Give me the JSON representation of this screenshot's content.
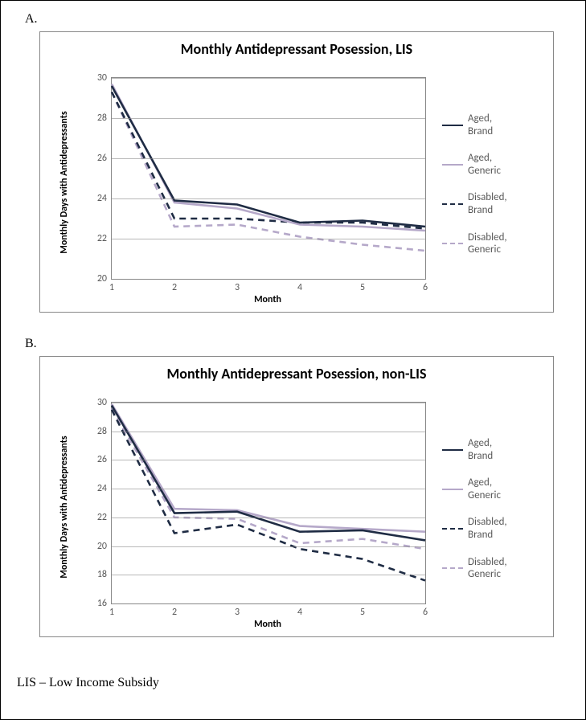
{
  "border_color": "#000000",
  "footnote": "LIS – Low Income Subsidy",
  "panelA": {
    "label": "A.",
    "title": "Monthly Antidepressant Posession, LIS",
    "title_fontsize": 18,
    "xlabel": "Month",
    "ylabel": "Monthly Days with Antidepressants",
    "label_fontsize": 12,
    "tick_color": "#595959",
    "background_color": "#ffffff",
    "grid_color": "#888888",
    "xlim": [
      1,
      6
    ],
    "ylim": [
      20,
      30
    ],
    "ytick_step": 2,
    "xticks": [
      1,
      2,
      3,
      4,
      5,
      6
    ],
    "yticks": [
      20,
      22,
      24,
      26,
      28,
      30
    ],
    "series": {
      "aged_brand": {
        "label": "Aged, Brand",
        "color": "#1f2c44",
        "dash": "solid",
        "width": 2.6,
        "x": [
          1,
          2,
          3,
          4,
          5,
          6
        ],
        "y": [
          29.6,
          23.9,
          23.7,
          22.8,
          22.9,
          22.6
        ]
      },
      "aged_generic": {
        "label": "Aged, Generic",
        "color": "#b5a8c9",
        "dash": "solid",
        "width": 2.6,
        "x": [
          1,
          2,
          3,
          4,
          5,
          6
        ],
        "y": [
          29.7,
          23.8,
          23.5,
          22.7,
          22.6,
          22.4
        ]
      },
      "disabled_brand": {
        "label": "Disabled, Brand",
        "color": "#1f2c44",
        "dash": "8,6",
        "width": 2.6,
        "x": [
          1,
          2,
          3,
          4,
          5,
          6
        ],
        "y": [
          29.3,
          23.0,
          23.0,
          22.8,
          22.8,
          22.5
        ]
      },
      "disabled_generic": {
        "label": "Disabled, Generic",
        "color": "#b5a8c9",
        "dash": "8,6",
        "width": 2.6,
        "x": [
          1,
          2,
          3,
          4,
          5,
          6
        ],
        "y": [
          29.3,
          22.6,
          22.7,
          22.1,
          21.7,
          21.4
        ]
      }
    }
  },
  "panelB": {
    "label": "B.",
    "title": "Monthly Antidepressant Posession, non-LIS",
    "title_fontsize": 18,
    "xlabel": "Month",
    "ylabel": "Monthly Days with Antidepressants",
    "label_fontsize": 12,
    "tick_color": "#595959",
    "background_color": "#ffffff",
    "grid_color": "#888888",
    "xlim": [
      1,
      6
    ],
    "ylim": [
      16,
      30
    ],
    "ytick_step": 2,
    "xticks": [
      1,
      2,
      3,
      4,
      5,
      6
    ],
    "yticks": [
      16,
      18,
      20,
      22,
      24,
      26,
      28,
      30
    ],
    "series": {
      "aged_brand": {
        "label": "Aged, Brand",
        "color": "#1f2c44",
        "dash": "solid",
        "width": 2.6,
        "x": [
          1,
          2,
          3,
          4,
          5,
          6
        ],
        "y": [
          29.8,
          22.3,
          22.4,
          21.0,
          21.1,
          20.4
        ]
      },
      "aged_generic": {
        "label": "Aged, Generic",
        "color": "#b5a8c9",
        "dash": "solid",
        "width": 2.6,
        "x": [
          1,
          2,
          3,
          4,
          5,
          6
        ],
        "y": [
          29.9,
          22.6,
          22.5,
          21.4,
          21.2,
          21.0
        ]
      },
      "disabled_brand": {
        "label": "Disabled, Brand",
        "color": "#1f2c44",
        "dash": "8,6",
        "width": 2.6,
        "x": [
          1,
          2,
          3,
          4,
          5,
          6
        ],
        "y": [
          29.5,
          20.9,
          21.5,
          19.8,
          19.1,
          17.6
        ]
      },
      "disabled_generic": {
        "label": "Disabled, Generic",
        "color": "#b5a8c9",
        "dash": "8,6",
        "width": 2.6,
        "x": [
          1,
          2,
          3,
          4,
          5,
          6
        ],
        "y": [
          29.6,
          22.0,
          21.9,
          20.2,
          20.5,
          19.8
        ]
      }
    }
  }
}
